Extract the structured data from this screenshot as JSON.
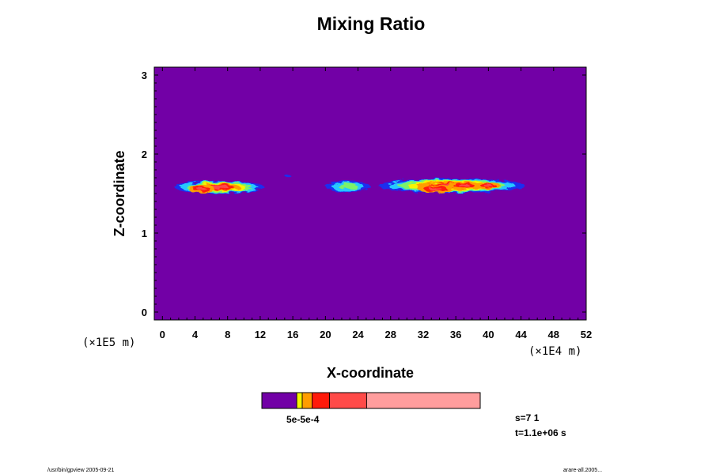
{
  "chart_data": {
    "type": "heatmap",
    "title": "Mixing Ratio",
    "xlabel": "X-coordinate",
    "ylabel": "Z-coordinate",
    "x_unit": "(×1E4 m)",
    "y_unit": "(×1E5 m)",
    "xlim": [
      -1,
      52
    ],
    "ylim": [
      -0.1,
      3.1
    ],
    "x_ticks": [
      0,
      4,
      8,
      12,
      16,
      20,
      24,
      28,
      32,
      36,
      40,
      44,
      48,
      52
    ],
    "y_ticks": [
      0,
      1,
      2,
      3
    ],
    "background_color": "#7200a6",
    "levels": [
      {
        "name": "background",
        "color": "#7200a6"
      },
      {
        "name": "l1",
        "color": "#1a2df0"
      },
      {
        "name": "l2",
        "color": "#25c8ff"
      },
      {
        "name": "l3",
        "color": "#7cf26a"
      },
      {
        "name": "l4",
        "color": "#f5f500"
      },
      {
        "name": "l5",
        "color": "#ff9d00"
      },
      {
        "name": "l6",
        "color": "#ff1a0a"
      },
      {
        "name": "l7",
        "color": "#ff4a48"
      }
    ],
    "blobs": [
      {
        "x": [
          1.5,
          12.5
        ],
        "z_center": 1.58,
        "z_half": 0.08,
        "peak_level": 7,
        "core": [
          [
            4.8,
            1.56,
            1.6,
            0.06
          ]
        ]
      },
      {
        "x": [
          15.0,
          15.8
        ],
        "z_center": 1.72,
        "z_half": 0.02,
        "peak_level": 1,
        "core": []
      },
      {
        "x": [
          20.0,
          25.5
        ],
        "z_center": 1.59,
        "z_half": 0.07,
        "peak_level": 3,
        "core": []
      },
      {
        "x": [
          26.5,
          44.5
        ],
        "z_center": 1.6,
        "z_half": 0.09,
        "peak_level": 7,
        "core": [
          [
            33.5,
            1.56,
            2.2,
            0.05
          ],
          [
            37.0,
            1.6,
            2.0,
            0.05
          ],
          [
            40.0,
            1.6,
            1.5,
            0.04
          ]
        ]
      }
    ],
    "colorbar": {
      "colors": [
        "#7200a6",
        "#f5f500",
        "#ff9d00",
        "#ff1a0a",
        "#ff4a48",
        "#ff9d9d"
      ],
      "fractions": [
        0.16,
        0.025,
        0.045,
        0.08,
        0.17,
        0.52
      ],
      "label": "5e-5e-4"
    },
    "annotations": {
      "step": "s=7 1",
      "time": "t=1.1e+06 s"
    }
  },
  "footer": {
    "left": "/usr/bin/gpview 2005-09-21",
    "right": "arare-all.2005..."
  }
}
